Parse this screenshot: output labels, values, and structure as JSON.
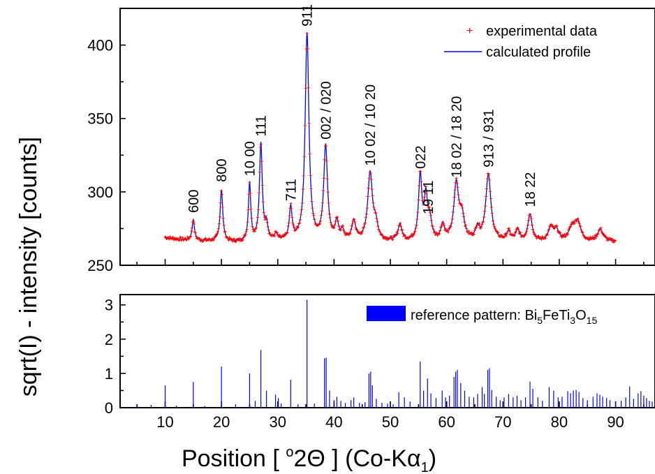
{
  "chart_data": [
    {
      "type": "line",
      "panel": "top",
      "xlim": [
        2,
        97
      ],
      "ylim": [
        250,
        425
      ],
      "yticks": [
        250,
        300,
        350,
        400
      ],
      "legend": {
        "placement": "top-right",
        "experimental": "experimental data",
        "calculated": "calculated profile"
      },
      "colors": {
        "experimental": "#ff0000",
        "calculated": "#0000ff"
      },
      "baseline": 266,
      "peaks": [
        {
          "x": 15.0,
          "y": 280,
          "w": 0.25
        },
        {
          "x": 20.0,
          "y": 301,
          "w": 0.28
        },
        {
          "x": 25.0,
          "y": 305,
          "w": 0.25
        },
        {
          "x": 27.0,
          "y": 332,
          "w": 0.3
        },
        {
          "x": 28.0,
          "y": 276,
          "w": 0.3
        },
        {
          "x": 29.7,
          "y": 270,
          "w": 0.3
        },
        {
          "x": 32.3,
          "y": 288,
          "w": 0.3
        },
        {
          "x": 35.2,
          "y": 407,
          "w": 0.4
        },
        {
          "x": 38.5,
          "y": 330,
          "w": 0.4
        },
        {
          "x": 40.5,
          "y": 278,
          "w": 0.35
        },
        {
          "x": 41.5,
          "y": 272,
          "w": 0.35
        },
        {
          "x": 43.5,
          "y": 279,
          "w": 0.4
        },
        {
          "x": 46.4,
          "y": 312,
          "w": 0.5
        },
        {
          "x": 47.4,
          "y": 276,
          "w": 0.4
        },
        {
          "x": 51.7,
          "y": 277,
          "w": 0.4
        },
        {
          "x": 55.3,
          "y": 310,
          "w": 0.35
        },
        {
          "x": 56.3,
          "y": 294,
          "w": 0.35
        },
        {
          "x": 57.0,
          "y": 279,
          "w": 0.4
        },
        {
          "x": 59.3,
          "y": 276,
          "w": 0.4
        },
        {
          "x": 61.7,
          "y": 304,
          "w": 0.5
        },
        {
          "x": 62.7,
          "y": 282,
          "w": 0.5
        },
        {
          "x": 65.5,
          "y": 274,
          "w": 0.4
        },
        {
          "x": 67.4,
          "y": 311,
          "w": 0.55
        },
        {
          "x": 71.0,
          "y": 272,
          "w": 0.4
        },
        {
          "x": 72.6,
          "y": 273,
          "w": 0.4
        },
        {
          "x": 74.8,
          "y": 284,
          "w": 0.45
        },
        {
          "x": 78.5,
          "y": 275,
          "w": 0.5
        },
        {
          "x": 79.5,
          "y": 273,
          "w": 0.5
        },
        {
          "x": 82.3,
          "y": 275,
          "w": 0.7
        },
        {
          "x": 83.3,
          "y": 278,
          "w": 0.6
        },
        {
          "x": 87.3,
          "y": 274,
          "w": 0.6
        }
      ],
      "peak_labels": [
        {
          "text": "600",
          "x": 15.0
        },
        {
          "text": "800",
          "x": 20.0
        },
        {
          "text": "10 00",
          "x": 25.0
        },
        {
          "text": "111",
          "x": 27.0
        },
        {
          "text": "711",
          "x": 32.3
        },
        {
          "text": "911",
          "x": 35.2
        },
        {
          "text": "002 / 020",
          "x": 38.5
        },
        {
          "text": "10 02 / 10 20",
          "x": 46.4
        },
        {
          "text": "022",
          "x": 55.3
        },
        {
          "text": "19 11",
          "x": 56.7
        },
        {
          "text": "18 02 / 18 20",
          "x": 61.7
        },
        {
          "text": "913 / 931",
          "x": 67.4
        },
        {
          "text": "18 22",
          "x": 74.8
        }
      ]
    },
    {
      "type": "bar",
      "panel": "bottom",
      "xlim": [
        2,
        97
      ],
      "ylim": [
        0,
        3.3
      ],
      "yticks": [
        0,
        1,
        2,
        3
      ],
      "xticks": [
        10,
        20,
        30,
        40,
        50,
        60,
        70,
        80,
        90
      ],
      "legend": {
        "placement": "top-right",
        "label": "reference pattern: Bi",
        "formula": [
          {
            "t": "Bi",
            "sub": "5"
          },
          {
            "t": "FeTi",
            "sub": "3"
          },
          {
            "t": "O",
            "sub": "15"
          }
        ]
      },
      "color": "#0000ff",
      "sticks": [
        [
          5.0,
          0.1
        ],
        [
          7.5,
          0.08
        ],
        [
          10.0,
          0.65
        ],
        [
          12.0,
          0.06
        ],
        [
          15.0,
          0.75
        ],
        [
          17.0,
          0.05
        ],
        [
          20.0,
          1.2
        ],
        [
          22.5,
          0.1
        ],
        [
          25.0,
          1.0
        ],
        [
          26.0,
          0.2
        ],
        [
          27.0,
          1.68
        ],
        [
          28.0,
          0.5
        ],
        [
          29.6,
          0.38
        ],
        [
          30.1,
          0.28
        ],
        [
          30.6,
          0.12
        ],
        [
          32.3,
          0.82
        ],
        [
          33.6,
          0.1
        ],
        [
          35.2,
          3.15
        ],
        [
          36.5,
          0.12
        ],
        [
          38.3,
          1.44
        ],
        [
          38.6,
          1.46
        ],
        [
          39.2,
          0.5
        ],
        [
          40.0,
          0.22
        ],
        [
          40.5,
          0.32
        ],
        [
          41.2,
          0.2
        ],
        [
          42.0,
          0.14
        ],
        [
          43.0,
          0.22
        ],
        [
          43.5,
          0.3
        ],
        [
          44.5,
          0.14
        ],
        [
          45.5,
          0.16
        ],
        [
          46.2,
          1.0
        ],
        [
          46.5,
          1.05
        ],
        [
          46.8,
          0.65
        ],
        [
          47.5,
          0.26
        ],
        [
          48.5,
          0.14
        ],
        [
          49.5,
          0.12
        ],
        [
          50.5,
          0.1
        ],
        [
          51.5,
          0.45
        ],
        [
          52.5,
          0.3
        ],
        [
          53.5,
          0.18
        ],
        [
          55.3,
          1.35
        ],
        [
          55.9,
          0.5
        ],
        [
          56.6,
          0.85
        ],
        [
          57.2,
          0.42
        ],
        [
          58.1,
          0.28
        ],
        [
          59.2,
          0.5
        ],
        [
          59.8,
          0.3
        ],
        [
          60.5,
          0.35
        ],
        [
          61.3,
          0.9
        ],
        [
          61.6,
          1.05
        ],
        [
          61.9,
          1.1
        ],
        [
          62.5,
          0.72
        ],
        [
          63.2,
          0.5
        ],
        [
          64.0,
          0.32
        ],
        [
          64.8,
          0.3
        ],
        [
          65.5,
          0.4
        ],
        [
          66.3,
          0.6
        ],
        [
          66.7,
          0.4
        ],
        [
          67.3,
          1.1
        ],
        [
          67.6,
          1.15
        ],
        [
          68.0,
          0.52
        ],
        [
          68.8,
          0.32
        ],
        [
          69.5,
          0.22
        ],
        [
          70.2,
          0.3
        ],
        [
          71.0,
          0.4
        ],
        [
          71.8,
          0.3
        ],
        [
          72.5,
          0.35
        ],
        [
          73.2,
          0.22
        ],
        [
          74.0,
          0.3
        ],
        [
          74.8,
          0.76
        ],
        [
          75.3,
          0.55
        ],
        [
          76.2,
          0.3
        ],
        [
          77.0,
          0.2
        ],
        [
          78.2,
          0.6
        ],
        [
          79.0,
          0.5
        ],
        [
          79.8,
          0.3
        ],
        [
          80.5,
          0.32
        ],
        [
          81.5,
          0.48
        ],
        [
          82.0,
          0.42
        ],
        [
          82.5,
          0.5
        ],
        [
          83.0,
          0.52
        ],
        [
          83.5,
          0.46
        ],
        [
          84.2,
          0.28
        ],
        [
          85.0,
          0.22
        ],
        [
          86.0,
          0.32
        ],
        [
          86.7,
          0.42
        ],
        [
          87.2,
          0.38
        ],
        [
          87.7,
          0.32
        ],
        [
          88.4,
          0.28
        ],
        [
          89.0,
          0.22
        ],
        [
          90.0,
          0.18
        ],
        [
          91.0,
          0.2
        ],
        [
          91.8,
          0.3
        ],
        [
          92.5,
          0.62
        ],
        [
          93.2,
          0.26
        ],
        [
          94.0,
          0.42
        ],
        [
          94.5,
          0.48
        ],
        [
          95.0,
          0.35
        ],
        [
          95.5,
          0.28
        ],
        [
          96.0,
          0.2
        ],
        [
          96.5,
          0.18
        ]
      ]
    }
  ],
  "axis_titles": {
    "y": "sqrt(I) - intensity    [counts]",
    "x_prefix": "Position    [ ",
    "x_degree": "o",
    "x_theta": "2Θ ] (Co-Kα",
    "x_sub": "1",
    "x_suffix": ")"
  }
}
